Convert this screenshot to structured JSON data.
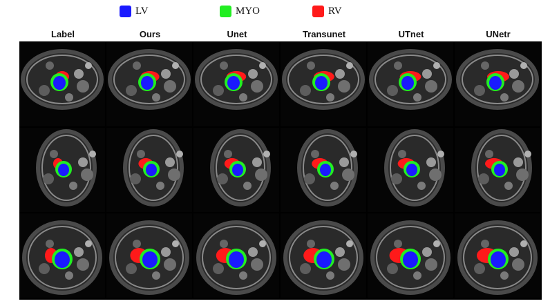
{
  "legend": [
    {
      "label": "LV",
      "color": "#1a1aff"
    },
    {
      "label": "MYO",
      "color": "#22ee22"
    },
    {
      "label": "RV",
      "color": "#ff1a1a"
    }
  ],
  "columns": [
    "Label",
    "Ours",
    "Unet",
    "Transunet",
    "UTnet",
    "UNetr"
  ],
  "rows": 3
}
